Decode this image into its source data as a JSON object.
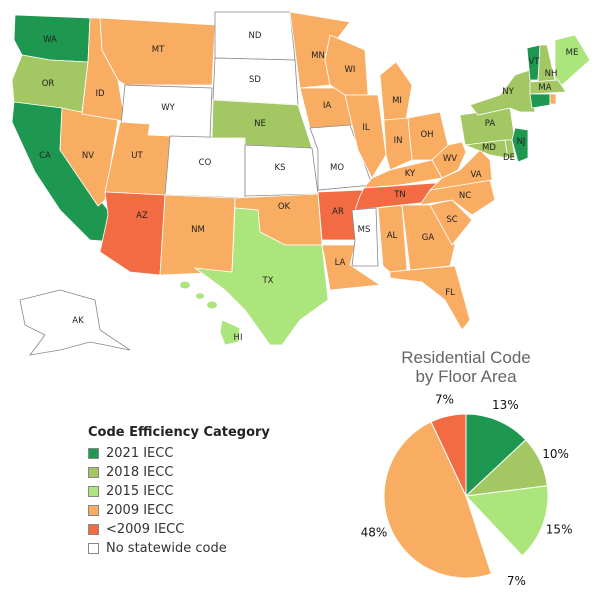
{
  "colors": {
    "2021 IECC": "#1e9850",
    "2018 IECC": "#a2c763",
    "2015 IECC": "#abe57c",
    "2009 IECC": "#f8ad62",
    "<2009 IECC": "#f26b43",
    "No statewide code": "#ffffff"
  },
  "map": {
    "states": [
      {
        "code": "WA",
        "category": "2021 IECC"
      },
      {
        "code": "OR",
        "category": "2018 IECC"
      },
      {
        "code": "CA",
        "category": "2021 IECC"
      },
      {
        "code": "NV",
        "category": "2009 IECC"
      },
      {
        "code": "ID",
        "category": "2009 IECC"
      },
      {
        "code": "MT",
        "category": "2009 IECC"
      },
      {
        "code": "WY",
        "category": "No statewide code"
      },
      {
        "code": "UT",
        "category": "2009 IECC"
      },
      {
        "code": "AZ",
        "category": "<2009 IECC"
      },
      {
        "code": "CO",
        "category": "No statewide code"
      },
      {
        "code": "NM",
        "category": "2009 IECC"
      },
      {
        "code": "ND",
        "category": "No statewide code"
      },
      {
        "code": "SD",
        "category": "No statewide code"
      },
      {
        "code": "NE",
        "category": "2018 IECC"
      },
      {
        "code": "KS",
        "category": "No statewide code"
      },
      {
        "code": "OK",
        "category": "2009 IECC"
      },
      {
        "code": "TX",
        "category": "2015 IECC"
      },
      {
        "code": "MN",
        "category": "2009 IECC"
      },
      {
        "code": "IA",
        "category": "2009 IECC"
      },
      {
        "code": "MO",
        "category": "No statewide code"
      },
      {
        "code": "AR",
        "category": "<2009 IECC"
      },
      {
        "code": "LA",
        "category": "2009 IECC"
      },
      {
        "code": "WI",
        "category": "2009 IECC"
      },
      {
        "code": "IL",
        "category": "2009 IECC"
      },
      {
        "code": "MI",
        "category": "2009 IECC"
      },
      {
        "code": "IN",
        "category": "2009 IECC"
      },
      {
        "code": "OH",
        "category": "2009 IECC"
      },
      {
        "code": "KY",
        "category": "2009 IECC"
      },
      {
        "code": "TN",
        "category": "<2009 IECC"
      },
      {
        "code": "MS",
        "category": "No statewide code"
      },
      {
        "code": "AL",
        "category": "2009 IECC"
      },
      {
        "code": "GA",
        "category": "2009 IECC"
      },
      {
        "code": "FL",
        "category": "2009 IECC"
      },
      {
        "code": "SC",
        "category": "2009 IECC"
      },
      {
        "code": "NC",
        "category": "2009 IECC"
      },
      {
        "code": "VA",
        "category": "2009 IECC"
      },
      {
        "code": "WV",
        "category": "2009 IECC"
      },
      {
        "code": "PA",
        "category": "2018 IECC"
      },
      {
        "code": "NY",
        "category": "2018 IECC"
      },
      {
        "code": "MD",
        "category": "2018 IECC"
      },
      {
        "code": "DE",
        "category": "2018 IECC"
      },
      {
        "code": "NJ",
        "category": "2021 IECC"
      },
      {
        "code": "VT",
        "category": "2021 IECC"
      },
      {
        "code": "NH",
        "category": "2018 IECC"
      },
      {
        "code": "ME",
        "category": "2015 IECC"
      },
      {
        "code": "MA",
        "category": "2018 IECC"
      },
      {
        "code": "CT",
        "category": "2021 IECC"
      },
      {
        "code": "RI",
        "category": "2009 IECC"
      },
      {
        "code": "AK",
        "category": "No statewide code"
      },
      {
        "code": "HI",
        "category": "2015 IECC"
      }
    ]
  },
  "legend": {
    "title": "Code Efficiency Category",
    "items": [
      "2021 IECC",
      "2018 IECC",
      "2015 IECC",
      "2009 IECC",
      "<2009 IECC",
      "No statewide code"
    ]
  },
  "chart_data": {
    "type": "pie",
    "title": "Residential Code\nby Floor Area",
    "title_lines": [
      "Residential Code",
      "by Floor Area"
    ],
    "slices": [
      {
        "category": "2021 IECC",
        "value": 13,
        "label": "13%"
      },
      {
        "category": "2018 IECC",
        "value": 10,
        "label": "10%"
      },
      {
        "category": "2015 IECC",
        "value": 15,
        "label": "15%"
      },
      {
        "category": "No statewide code",
        "value": 7,
        "label": "7%"
      },
      {
        "category": "2009 IECC",
        "value": 48,
        "label": "48%"
      },
      {
        "category": "<2009 IECC",
        "value": 7,
        "label": "7%"
      }
    ]
  }
}
